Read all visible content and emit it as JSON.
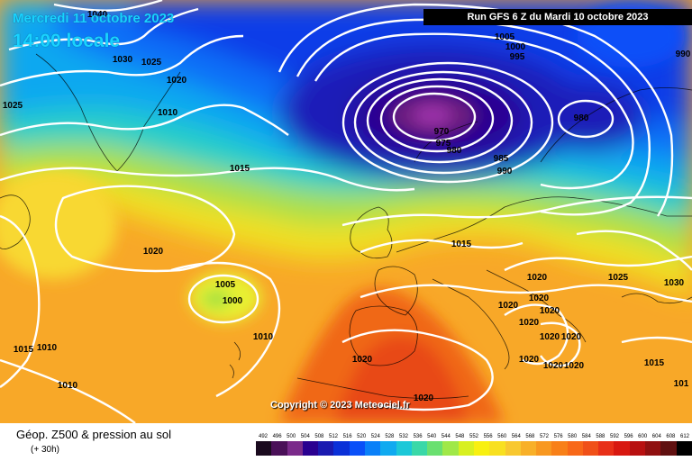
{
  "header": {
    "date": "Mercredi 11 octobre 2023",
    "time": "14:00 locale",
    "run": "Run GFS 6 Z du Mardi 10 octobre 2023"
  },
  "copyright": "Copyright © 2023 Meteociel.fr",
  "footer": {
    "title": "Géop. Z500 & pression au sol",
    "subtitle": "(+ 30h)"
  },
  "colors": {
    "scale": [
      "#1a0a1e",
      "#4a1058",
      "#7a2a8a",
      "#2a0090",
      "#1a1ab0",
      "#0a30d8",
      "#0a50f8",
      "#0a80f8",
      "#10aaf0",
      "#1cc8d8",
      "#3ad8a8",
      "#6ae070",
      "#a0e848",
      "#d8f020",
      "#f8f010",
      "#f8e020",
      "#f8c830",
      "#f8b028",
      "#f89820",
      "#f88018",
      "#f86818",
      "#f05018",
      "#e83018",
      "#d81810",
      "#b81010",
      "#901010",
      "#601010",
      "#000000"
    ]
  },
  "scale_labels": [
    "492",
    "496",
    "500",
    "504",
    "508",
    "512",
    "516",
    "520",
    "524",
    "528",
    "532",
    "536",
    "540",
    "544",
    "548",
    "552",
    "556",
    "560",
    "564",
    "568",
    "572",
    "576",
    "580",
    "584",
    "588",
    "592",
    "596",
    "600",
    "604",
    "608",
    "612"
  ],
  "isobar_labels": [
    {
      "text": "1040",
      "key": "a"
    },
    {
      "text": "1030",
      "key": "b"
    },
    {
      "text": "1025",
      "key": "c"
    },
    {
      "text": "1020",
      "key": "d"
    },
    {
      "text": "1025",
      "key": "e"
    },
    {
      "text": "1010",
      "key": "f"
    },
    {
      "text": "1015",
      "key": "g"
    },
    {
      "text": "1020",
      "key": "h"
    },
    {
      "text": "1005",
      "key": "i"
    },
    {
      "text": "1000",
      "key": "j"
    },
    {
      "text": "1010",
      "key": "k"
    },
    {
      "text": "1015",
      "key": "l"
    },
    {
      "text": "1010",
      "key": "m"
    },
    {
      "text": "1010",
      "key": "n"
    },
    {
      "text": "1005",
      "key": "o"
    },
    {
      "text": "1000",
      "key": "p"
    },
    {
      "text": "995",
      "key": "q"
    },
    {
      "text": "970",
      "key": "r"
    },
    {
      "text": "975",
      "key": "s"
    },
    {
      "text": "980",
      "key": "t"
    },
    {
      "text": "985",
      "key": "u"
    },
    {
      "text": "990",
      "key": "v"
    },
    {
      "text": "980",
      "key": "w"
    },
    {
      "text": "990",
      "key": "x"
    },
    {
      "text": "1015",
      "key": "y"
    },
    {
      "text": "1020",
      "key": "z"
    },
    {
      "text": "1020",
      "key": "aa"
    },
    {
      "text": "1020",
      "key": "ab"
    },
    {
      "text": "1020",
      "key": "ac"
    },
    {
      "text": "1020",
      "key": "ad"
    },
    {
      "text": "1020",
      "key": "ae"
    },
    {
      "text": "1020",
      "key": "af"
    },
    {
      "text": "1020",
      "key": "ag"
    },
    {
      "text": "1020",
      "key": "ah"
    },
    {
      "text": "1025",
      "key": "ai"
    },
    {
      "text": "1030",
      "key": "aj"
    },
    {
      "text": "1015",
      "key": "ak"
    },
    {
      "text": "101",
      "key": "al"
    },
    {
      "text": "1020",
      "key": "am"
    },
    {
      "text": "1020",
      "key": "an"
    },
    {
      "text": "1020",
      "key": "ao"
    }
  ]
}
